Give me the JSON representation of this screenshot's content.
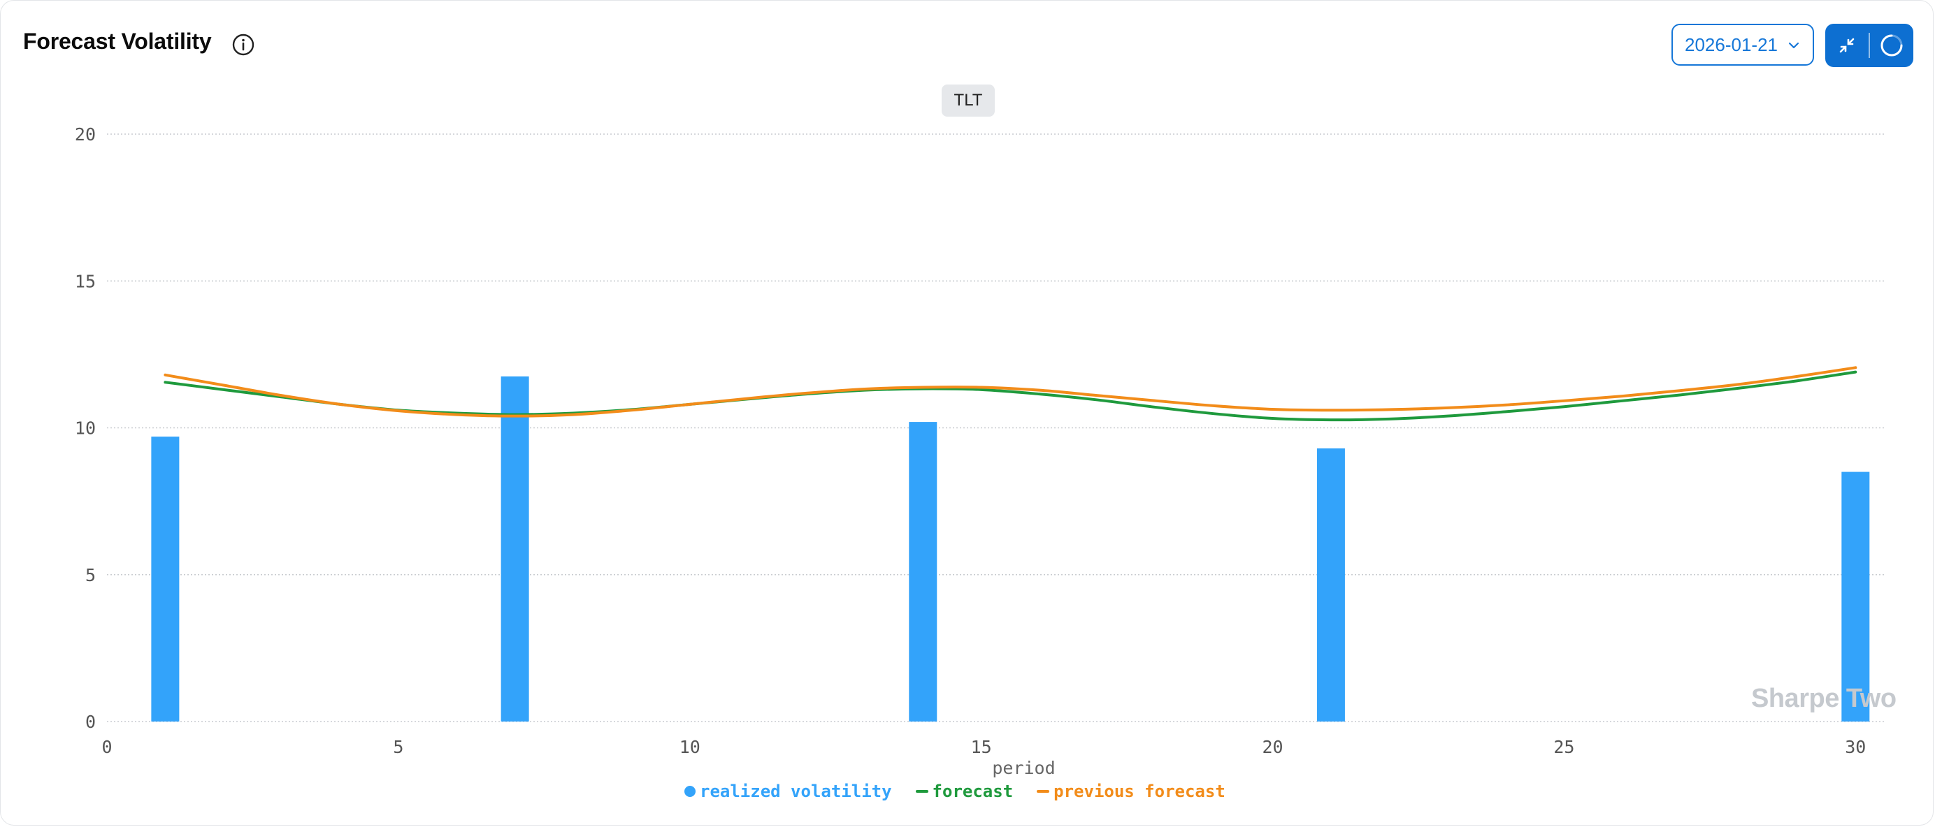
{
  "header": {
    "title": "Forecast Volatility",
    "date_value": "2026-01-21"
  },
  "ticker": "TLT",
  "watermark": "Sharpe Two",
  "colors": {
    "realized": "#33a3fa",
    "forecast": "#1f9a3d",
    "previous": "#f28c1a",
    "accent": "#1677d8"
  },
  "icons": {
    "info": "info-icon",
    "dropdown": "chevron-down-icon",
    "collapse": "collapse-icon",
    "refresh": "loading-spinner-icon"
  },
  "chart_data": {
    "type": "bar",
    "xlabel": "period",
    "ylabel": "",
    "xlim": [
      0,
      30.5
    ],
    "ylim": [
      0,
      20
    ],
    "x_ticks": [
      0,
      5,
      10,
      15,
      20,
      25,
      30
    ],
    "y_ticks": [
      0,
      5,
      10,
      15,
      20
    ],
    "grid": true,
    "legend_position": "bottom-center",
    "series": [
      {
        "name": "realized volatility",
        "type": "bar",
        "x": [
          1,
          7,
          14,
          21,
          30
        ],
        "values": [
          9.7,
          11.75,
          10.2,
          9.3,
          8.5
        ]
      },
      {
        "name": "forecast",
        "type": "line",
        "x": [
          1,
          2,
          3,
          4,
          5,
          6,
          7,
          8,
          9,
          10,
          11,
          12,
          13,
          14,
          15,
          16,
          17,
          18,
          19,
          20,
          21,
          22,
          23,
          24,
          25,
          26,
          27,
          28,
          29,
          30
        ],
        "values": [
          11.55,
          11.3,
          11.05,
          10.8,
          10.6,
          10.5,
          10.45,
          10.5,
          10.62,
          10.8,
          10.98,
          11.15,
          11.28,
          11.33,
          11.3,
          11.15,
          10.95,
          10.7,
          10.48,
          10.32,
          10.27,
          10.3,
          10.4,
          10.55,
          10.72,
          10.92,
          11.12,
          11.35,
          11.6,
          11.9
        ]
      },
      {
        "name": "previous forecast",
        "type": "line",
        "x": [
          1,
          2,
          3,
          4,
          5,
          6,
          7,
          8,
          9,
          10,
          11,
          12,
          13,
          14,
          15,
          16,
          17,
          18,
          19,
          20,
          21,
          22,
          23,
          24,
          25,
          26,
          27,
          28,
          29,
          30
        ],
        "values": [
          11.8,
          11.45,
          11.1,
          10.8,
          10.58,
          10.45,
          10.4,
          10.45,
          10.6,
          10.8,
          11.0,
          11.18,
          11.32,
          11.38,
          11.38,
          11.28,
          11.1,
          10.92,
          10.75,
          10.63,
          10.6,
          10.62,
          10.68,
          10.78,
          10.92,
          11.08,
          11.27,
          11.48,
          11.75,
          12.05
        ]
      }
    ]
  }
}
